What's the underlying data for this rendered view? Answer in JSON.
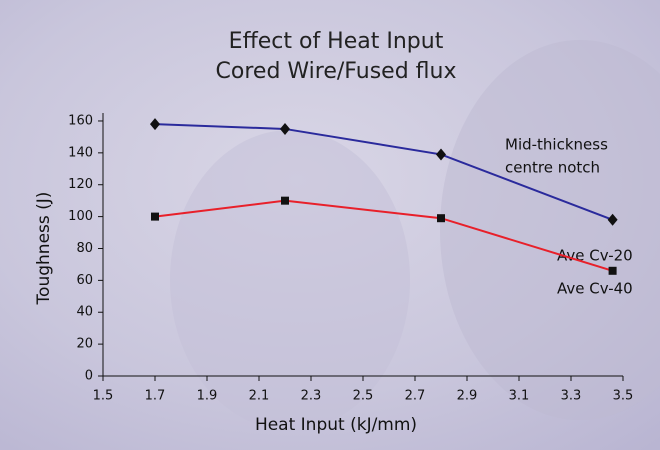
{
  "chart_data": {
    "type": "line",
    "title": "Effect of Heat Input",
    "subtitle": "Cored Wire/Fused flux",
    "xlabel": "Heat Input (kJ/mm)",
    "ylabel": "Toughness (J)",
    "annotation": [
      "Mid-thickness",
      "centre notch"
    ],
    "x": [
      1.7,
      2.2,
      2.8,
      3.46
    ],
    "series": [
      {
        "name": "Ave Cv-20",
        "color": "#2a2a9c",
        "marker": "diamond",
        "values": [
          158,
          155,
          139,
          98
        ]
      },
      {
        "name": "Ave Cv-40",
        "color": "#e8202a",
        "marker": "square",
        "values": [
          100,
          110,
          99,
          66
        ]
      }
    ],
    "xlim": [
      1.5,
      3.5
    ],
    "xticks": [
      1.5,
      1.7,
      1.9,
      2.1,
      2.3,
      2.5,
      2.7,
      2.9,
      3.1,
      3.3,
      3.5
    ],
    "ylim": [
      0,
      165
    ],
    "yticks": [
      0,
      20,
      40,
      60,
      80,
      100,
      120,
      140,
      160
    ],
    "grid": false
  }
}
